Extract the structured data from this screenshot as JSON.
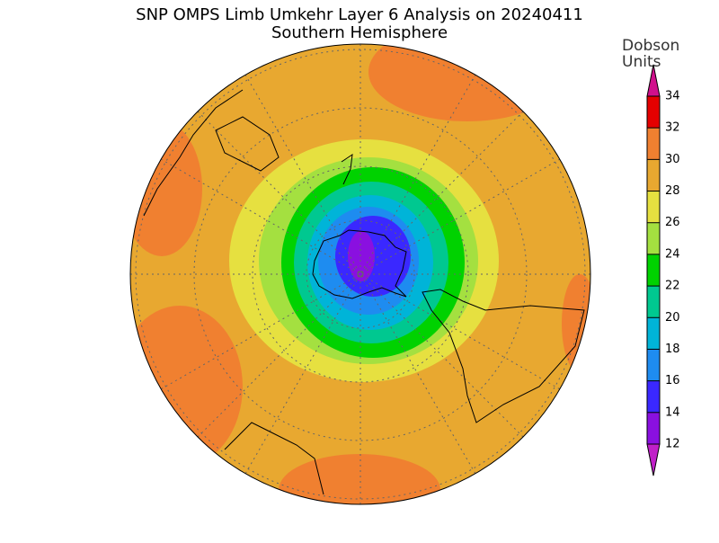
{
  "title": "SNP OMPS Limb Umkehr Layer 6 Analysis on 20240411",
  "subtitle": "Southern Hemisphere",
  "colorbar": {
    "label": [
      "Dobson",
      "Units"
    ],
    "ticks": [
      12,
      14,
      16,
      18,
      20,
      22,
      24,
      26,
      28,
      30,
      32,
      34
    ],
    "colors": [
      "#8a10e0",
      "#3a28ff",
      "#1e8cf0",
      "#00b4d8",
      "#00c890",
      "#00d200",
      "#a4e040",
      "#e6e040",
      "#e8a830",
      "#f08030",
      "#e40000"
    ],
    "under_color": "#c020c8",
    "over_color": "#d0108c"
  }
}
